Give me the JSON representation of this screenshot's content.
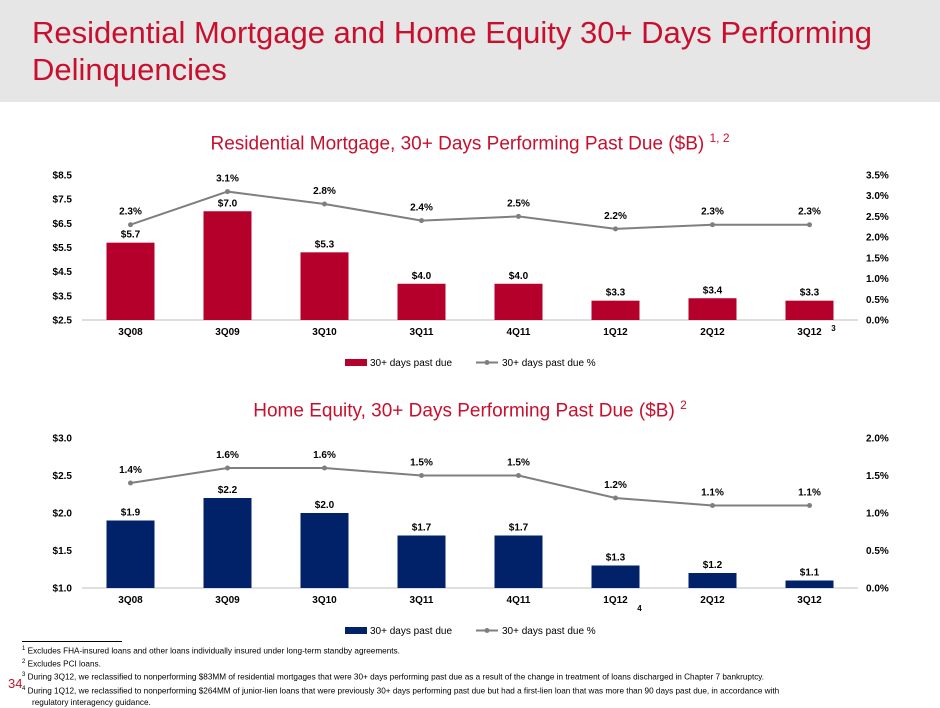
{
  "title": "Residential Mortgage and Home Equity 30+ Days Performing Delinquencies",
  "page_number": "34",
  "colors": {
    "accent_red": "#c8102e",
    "bar_red": "#b5002b",
    "bar_navy": "#012169",
    "line_gray": "#7f7f7f"
  },
  "chart_data": [
    {
      "type": "bar",
      "title": "Residential Mortgage, 30+ Days Performing Past Due ($B)",
      "title_sup": "1, 2",
      "categories": [
        "3Q08",
        "3Q09",
        "3Q10",
        "3Q11",
        "4Q11",
        "1Q12",
        "2Q12",
        "3Q12"
      ],
      "category_superscripts": {
        "7": "3"
      },
      "series": [
        {
          "name": "30+ days past due",
          "axis": "left",
          "values": [
            5.7,
            7.0,
            5.3,
            4.0,
            4.0,
            3.3,
            3.4,
            3.3
          ],
          "labels": [
            "$5.7",
            "$7.0",
            "$5.3",
            "$4.0",
            "$4.0",
            "$3.3",
            "$3.4",
            "$3.3"
          ]
        },
        {
          "name": "30+ days past due %",
          "type": "line",
          "axis": "right",
          "values": [
            2.3,
            3.1,
            2.8,
            2.4,
            2.5,
            2.2,
            2.3,
            2.3
          ],
          "labels": [
            "2.3%",
            "3.1%",
            "2.8%",
            "2.4%",
            "2.5%",
            "2.2%",
            "2.3%",
            "2.3%"
          ]
        }
      ],
      "y_left": {
        "min": 2.5,
        "max": 8.5,
        "ticks": [
          "$8.5",
          "$7.5",
          "$6.5",
          "$5.5",
          "$4.5",
          "$3.5",
          "$2.5"
        ],
        "tick_values": [
          8.5,
          7.5,
          6.5,
          5.5,
          4.5,
          3.5,
          2.5
        ]
      },
      "y_right": {
        "min": 0,
        "max": 3.5,
        "ticks": [
          "3.5%",
          "3.0%",
          "2.5%",
          "2.0%",
          "1.5%",
          "1.0%",
          "0.5%",
          "0.0%"
        ],
        "tick_values": [
          3.5,
          3.0,
          2.5,
          2.0,
          1.5,
          1.0,
          0.5,
          0.0
        ]
      },
      "legend_position": "bottom"
    },
    {
      "type": "bar",
      "title": "Home Equity, 30+ Days Performing Past Due ($B)",
      "title_sup": "2",
      "categories": [
        "3Q08",
        "3Q09",
        "3Q10",
        "3Q11",
        "4Q11",
        "1Q12",
        "2Q12",
        "3Q12"
      ],
      "category_superscripts": {
        "5": "4"
      },
      "series": [
        {
          "name": "30+ days past due",
          "axis": "left",
          "values": [
            1.9,
            2.2,
            2.0,
            1.7,
            1.7,
            1.3,
            1.2,
            1.1
          ],
          "labels": [
            "$1.9",
            "$2.2",
            "$2.0",
            "$1.7",
            "$1.7",
            "$1.3",
            "$1.2",
            "$1.1"
          ]
        },
        {
          "name": "30+ days past due %",
          "type": "line",
          "axis": "right",
          "values": [
            1.4,
            1.6,
            1.6,
            1.5,
            1.5,
            1.2,
            1.1,
            1.1
          ],
          "labels": [
            "1.4%",
            "1.6%",
            "1.6%",
            "1.5%",
            "1.5%",
            "1.2%",
            "1.1%",
            "1.1%"
          ]
        }
      ],
      "y_left": {
        "min": 1.0,
        "max": 3.0,
        "ticks": [
          "$3.0",
          "$2.5",
          "$2.0",
          "$1.5",
          "$1.0"
        ],
        "tick_values": [
          3.0,
          2.5,
          2.0,
          1.5,
          1.0
        ]
      },
      "y_right": {
        "min": 0,
        "max": 2.0,
        "ticks": [
          "2.0%",
          "1.5%",
          "1.0%",
          "0.5%",
          "0.0%"
        ],
        "tick_values": [
          2.0,
          1.5,
          1.0,
          0.5,
          0.0
        ]
      },
      "legend_position": "bottom"
    }
  ],
  "footnotes": [
    {
      "num": "1",
      "text": "Excludes FHA-insured loans and other loans individually insured under long-term standby agreements."
    },
    {
      "num": "2",
      "text": "Excludes PCI loans."
    },
    {
      "num": "3",
      "text": "During 3Q12, we reclassified to nonperforming $83MM of residential mortgages that were 30+ days performing past due as a result of the change in treatment of loans discharged in Chapter 7 bankruptcy."
    },
    {
      "num": "4",
      "text": "During 1Q12, we reclassified to nonperforming $264MM of junior-lien loans that were previously 30+ days performing past due but had a first-lien loan that was more than 90 days past due, in accordance with",
      "continuation": "regulatory interagency guidance."
    }
  ]
}
